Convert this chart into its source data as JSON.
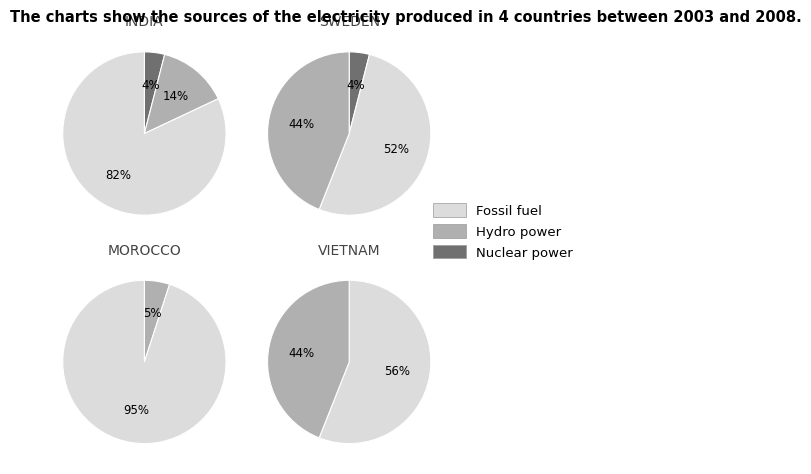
{
  "title": "The charts show the sources of the electricity produced in 4 countries between 2003 and 2008.",
  "countries": [
    "INDIA",
    "SWEDEN",
    "MOROCCO",
    "VIETNAM"
  ],
  "pie_data": {
    "INDIA": [
      82,
      14,
      4
    ],
    "SWEDEN": [
      52,
      44,
      4
    ],
    "MOROCCO": [
      95,
      5,
      0
    ],
    "VIETNAM": [
      56,
      44,
      0
    ]
  },
  "pie_order": [
    "Fossil fuel",
    "Hydro power",
    "Nuclear power"
  ],
  "colors": {
    "Fossil fuel": "#dcdcdc",
    "Hydro power": "#b0b0b0",
    "Nuclear power": "#707070"
  },
  "start_angles": {
    "INDIA": 90,
    "SWEDEN": 90,
    "MOROCCO": 90,
    "VIETNAM": 90
  },
  "legend_labels": [
    "Fossil fuel",
    "Hydro power",
    "Nuclear power"
  ],
  "title_fontsize": 10.5,
  "label_fontsize": 8.5,
  "country_fontsize": 10
}
